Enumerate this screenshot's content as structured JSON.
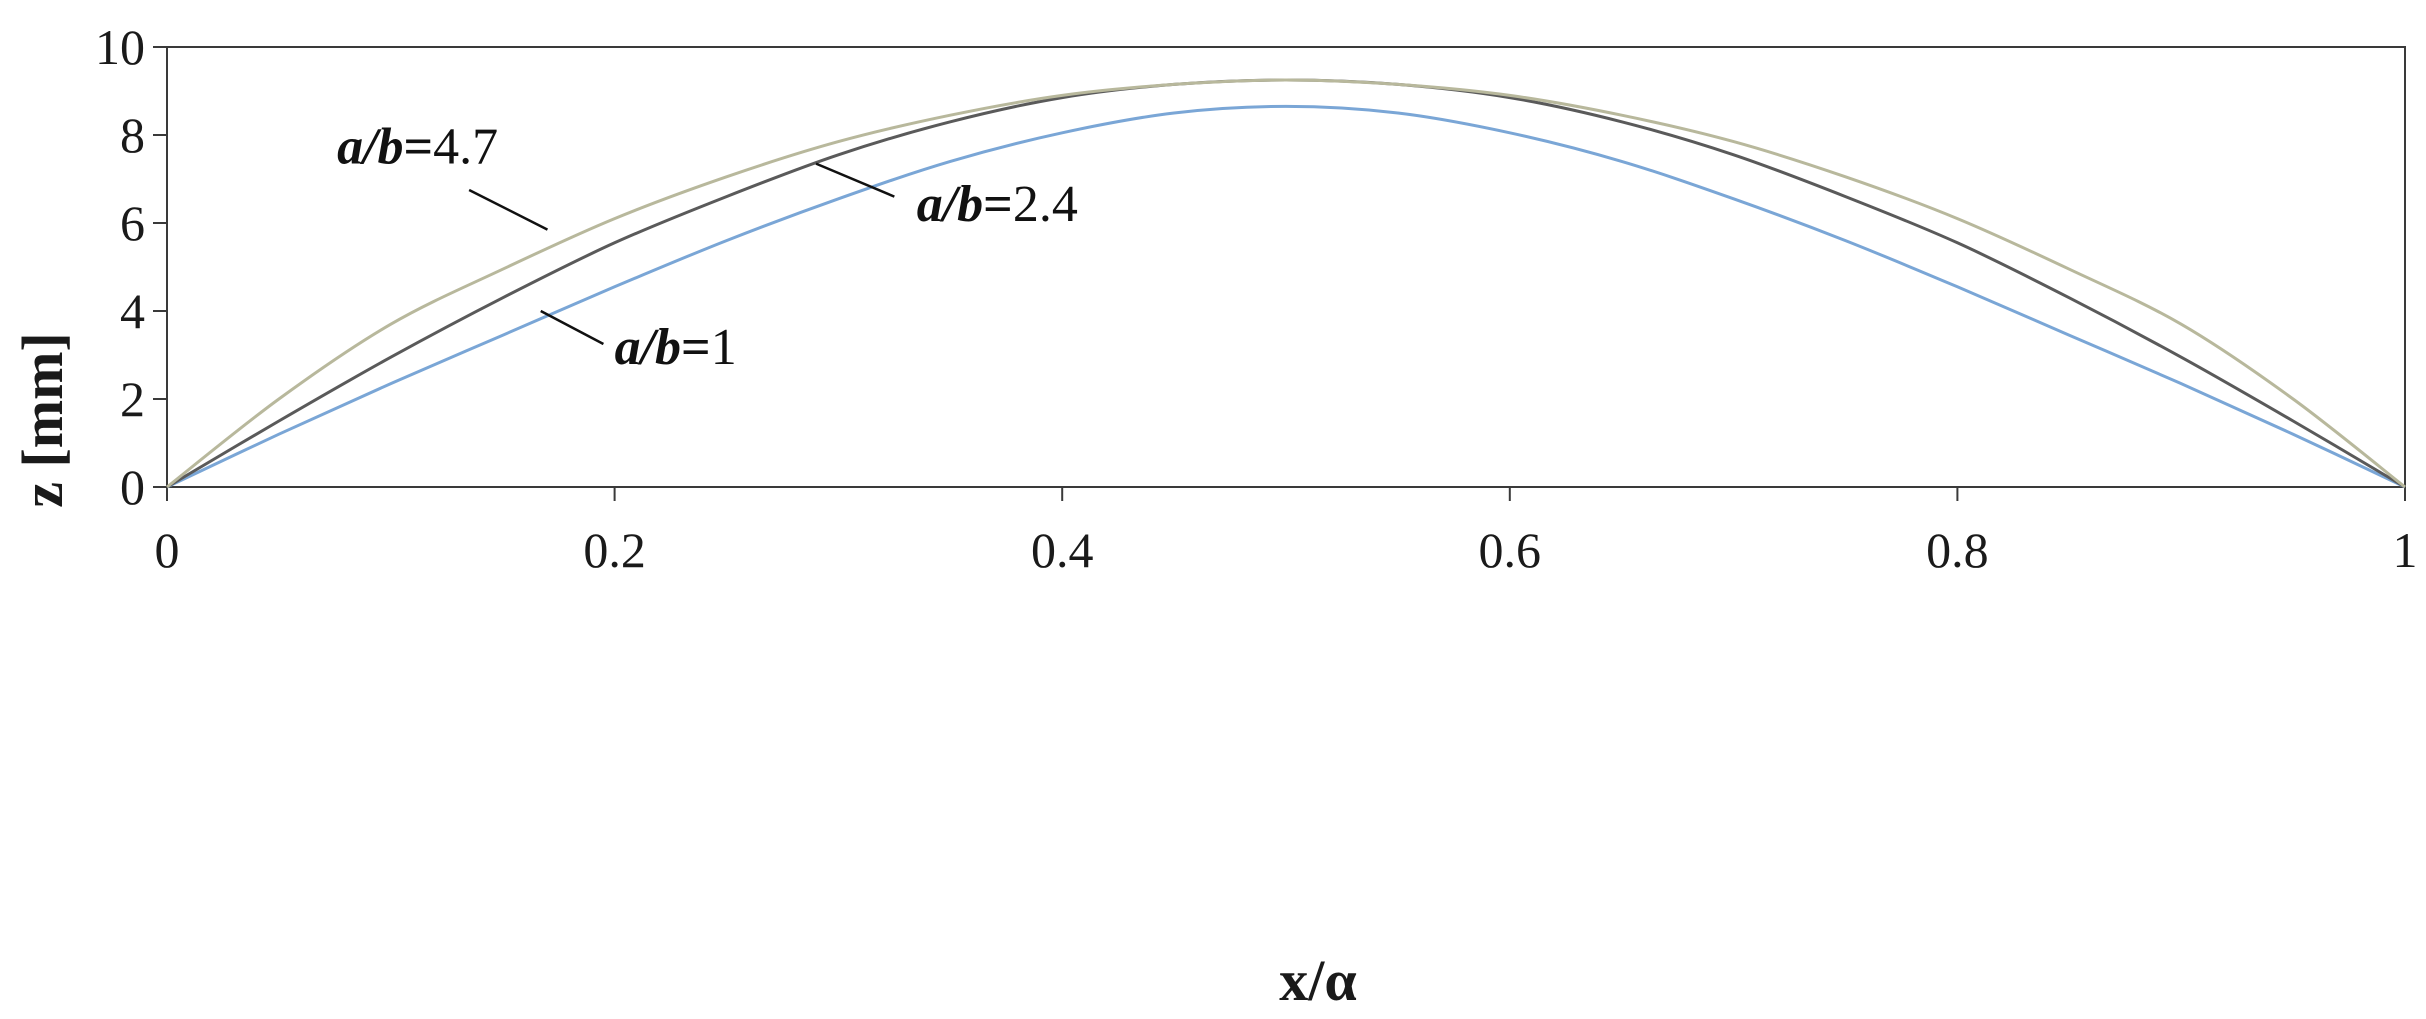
{
  "chart_data": {
    "type": "line",
    "xlabel": "x/α",
    "ylabel": "z [mm]",
    "xlim": [
      0,
      1
    ],
    "ylim": [
      0,
      10
    ],
    "xticks": [
      0,
      0.2,
      0.4,
      0.6,
      0.8,
      1
    ],
    "xtick_labels": [
      "0",
      "0.2",
      "0.4",
      "0.6",
      "0.8",
      "1"
    ],
    "yticks": [
      0,
      2,
      4,
      6,
      8,
      10
    ],
    "ytick_labels": [
      "0",
      "2",
      "4",
      "6",
      "8",
      "10"
    ],
    "grid": false,
    "x": [
      0,
      0.05,
      0.1,
      0.15,
      0.2,
      0.25,
      0.3,
      0.35,
      0.4,
      0.45,
      0.5,
      0.55,
      0.6,
      0.65,
      0.7,
      0.75,
      0.8,
      0.85,
      0.9,
      0.95,
      1
    ],
    "series": [
      {
        "name": "a/b=1",
        "color": "#7aa6d6",
        "values": [
          0,
          1.2,
          2.35,
          3.45,
          4.55,
          5.6,
          6.55,
          7.4,
          8.05,
          8.5,
          8.65,
          8.5,
          8.05,
          7.4,
          6.55,
          5.6,
          4.55,
          3.45,
          2.35,
          1.2,
          0
        ]
      },
      {
        "name": "a/b=2.4",
        "color": "#5a5a5a",
        "values": [
          0,
          1.5,
          2.95,
          4.3,
          5.55,
          6.6,
          7.55,
          8.3,
          8.85,
          9.15,
          9.25,
          9.15,
          8.85,
          8.3,
          7.55,
          6.6,
          5.55,
          4.3,
          2.95,
          1.5,
          0
        ]
      },
      {
        "name": "a/b=4.7",
        "color": "#b8b89c",
        "values": [
          0,
          2.0,
          3.7,
          4.95,
          6.1,
          7.05,
          7.85,
          8.45,
          8.9,
          9.15,
          9.25,
          9.15,
          8.9,
          8.45,
          7.85,
          7.05,
          6.1,
          4.95,
          3.7,
          2.0,
          0
        ]
      }
    ],
    "annotations": [
      {
        "var": "a/b",
        "eq": "=",
        "value": "4.7",
        "series": "a/b=4.7"
      },
      {
        "var": "a/b",
        "eq": "=",
        "value": "2.4",
        "series": "a/b=2.4"
      },
      {
        "var": "a/b",
        "eq": "=",
        "value": "1",
        "series": "a/b=1"
      }
    ]
  }
}
